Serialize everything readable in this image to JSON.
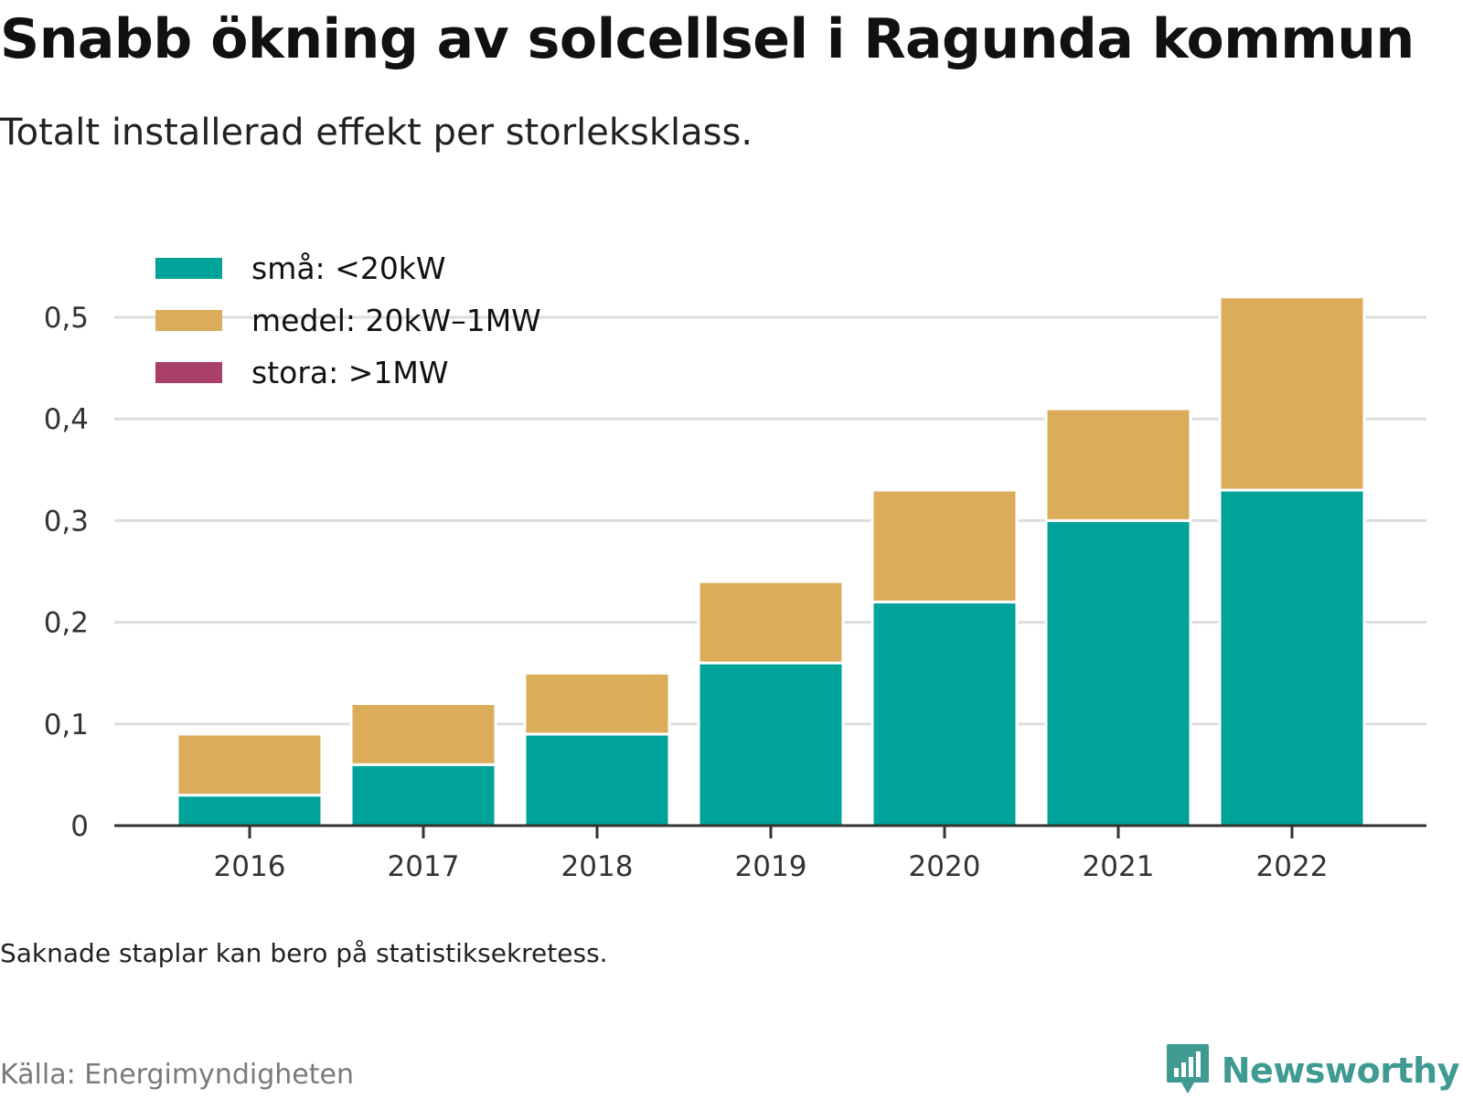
{
  "title": "Snabb ökning av solcellsel i Ragunda kommun",
  "subtitle": "Totalt installerad effekt per storleksklass.",
  "note": "Saknade staplar kan bero på statistiksekretess.",
  "source": "Källa: Energimyndigheten",
  "brand": {
    "name": "Newsworthy",
    "logo_icon": "bar-chart-speech-bubble-icon",
    "color": "#3f9a92"
  },
  "chart_data": {
    "type": "bar",
    "stacked": true,
    "categories": [
      "2016",
      "2017",
      "2018",
      "2019",
      "2020",
      "2021",
      "2022"
    ],
    "series": [
      {
        "name": "små: <20kW",
        "color": "#00a39a",
        "values": [
          0.03,
          0.06,
          0.09,
          0.16,
          0.22,
          0.3,
          0.33
        ]
      },
      {
        "name": "medel: 20kW–1MW",
        "color": "#dbac5a",
        "values": [
          0.06,
          0.06,
          0.06,
          0.08,
          0.11,
          0.11,
          0.19
        ]
      },
      {
        "name": "stora: >1MW",
        "color": "#a8406a",
        "values": [
          0,
          0,
          0,
          0,
          0,
          0,
          0
        ]
      }
    ],
    "ylim": [
      0,
      0.5
    ],
    "yticks": [
      "0",
      "0,1",
      "0,2",
      "0,3",
      "0,4",
      "0,5"
    ],
    "ytick_values": [
      0,
      0.1,
      0.2,
      0.3,
      0.4,
      0.5
    ],
    "grid": true,
    "legend_position": "top-left"
  }
}
